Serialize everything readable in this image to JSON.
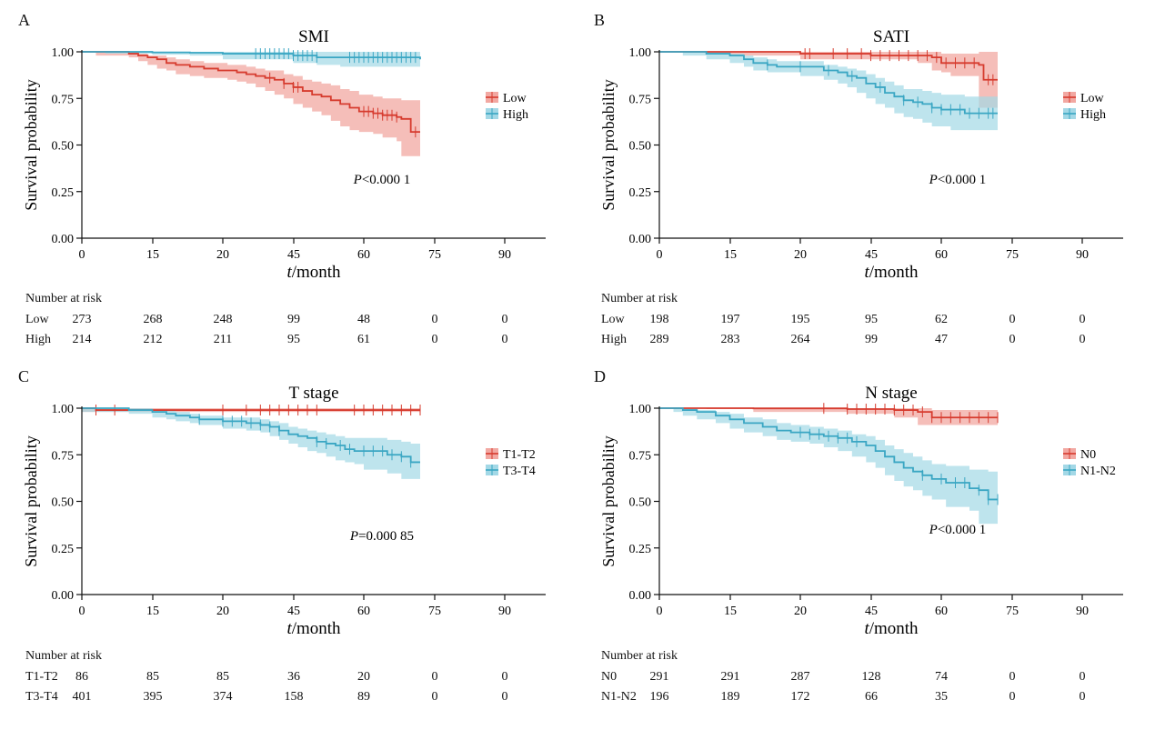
{
  "colors": {
    "low": "#d63b2e",
    "low_band": "#f2a8a2",
    "high": "#3aa6c3",
    "high_band": "#a3d8e6",
    "axis": "#111111"
  },
  "chart_data": [
    {
      "type": "line",
      "panel_label": "A",
      "title": "SMI",
      "xlabel": "t/month",
      "ylabel": "Survival probability",
      "x_ticks": [
        "0",
        "15",
        "20",
        "45",
        "60",
        "75",
        "90"
      ],
      "y_ticks": [
        "0.00",
        "0.25",
        "0.50",
        "0.75",
        "1.00"
      ],
      "ylim": [
        0,
        1
      ],
      "p_value": "P<0.000 1",
      "risk_title": "Number at risk",
      "series": [
        {
          "name": "Low",
          "x": [
            0,
            3,
            10,
            12,
            14,
            16,
            18,
            20,
            23,
            26,
            29,
            31,
            33,
            35,
            37,
            39,
            41,
            43,
            45,
            47,
            49,
            51,
            53,
            55,
            57,
            59,
            62,
            64,
            67,
            68,
            70,
            72
          ],
          "y": [
            1.0,
            1.0,
            0.99,
            0.98,
            0.97,
            0.96,
            0.94,
            0.93,
            0.92,
            0.91,
            0.9,
            0.9,
            0.89,
            0.88,
            0.87,
            0.86,
            0.85,
            0.83,
            0.81,
            0.79,
            0.77,
            0.76,
            0.74,
            0.72,
            0.7,
            0.68,
            0.67,
            0.66,
            0.65,
            0.64,
            0.57,
            0.57
          ],
          "lower": [
            1.0,
            1.0,
            0.98,
            0.97,
            0.95,
            0.93,
            0.91,
            0.9,
            0.88,
            0.87,
            0.86,
            0.86,
            0.85,
            0.84,
            0.83,
            0.81,
            0.79,
            0.77,
            0.75,
            0.72,
            0.7,
            0.68,
            0.66,
            0.63,
            0.6,
            0.58,
            0.57,
            0.56,
            0.54,
            0.52,
            0.44,
            0.44
          ],
          "upper": [
            1.0,
            1.0,
            1.0,
            0.99,
            0.98,
            0.98,
            0.97,
            0.96,
            0.95,
            0.94,
            0.94,
            0.93,
            0.93,
            0.92,
            0.91,
            0.9,
            0.9,
            0.88,
            0.87,
            0.85,
            0.84,
            0.83,
            0.82,
            0.8,
            0.79,
            0.77,
            0.76,
            0.75,
            0.75,
            0.74,
            0.74,
            0.74
          ],
          "censor_x": [
            40,
            43,
            45,
            46,
            60,
            61,
            62,
            63,
            64,
            65,
            66,
            67,
            71
          ],
          "risk": [
            "273",
            "268",
            "248",
            "99",
            "48",
            "0",
            "0"
          ]
        },
        {
          "name": "High",
          "x": [
            0,
            5,
            15,
            23,
            30,
            45,
            50,
            55,
            72
          ],
          "y": [
            1.0,
            1.0,
            0.997,
            0.995,
            0.99,
            0.98,
            0.97,
            0.97,
            0.96
          ],
          "lower": [
            1.0,
            1.0,
            0.99,
            0.985,
            0.98,
            0.96,
            0.94,
            0.93,
            0.92
          ],
          "upper": [
            1.0,
            1.0,
            1.0,
            1.0,
            1.0,
            1.0,
            1.0,
            1.0,
            1.0
          ],
          "censor_x": [
            37,
            38,
            39,
            40,
            41,
            42,
            43,
            44,
            45,
            46,
            47,
            48,
            49,
            50,
            57,
            58,
            59,
            60,
            61,
            62,
            63,
            64,
            65,
            66,
            67,
            68,
            69,
            70,
            71
          ],
          "risk": [
            "214",
            "212",
            "211",
            "95",
            "61",
            "0",
            "0"
          ]
        }
      ]
    },
    {
      "type": "line",
      "panel_label": "B",
      "title": "SATI",
      "xlabel": "t/month",
      "ylabel": "Survival probability",
      "x_ticks": [
        "0",
        "15",
        "20",
        "45",
        "60",
        "75",
        "90"
      ],
      "y_ticks": [
        "0.00",
        "0.25",
        "0.50",
        "0.75",
        "1.00"
      ],
      "ylim": [
        0,
        1
      ],
      "p_value": "P<0.000 1",
      "risk_title": "Number at risk",
      "series": [
        {
          "name": "Low",
          "x": [
            0,
            15,
            30,
            45,
            55,
            58,
            60,
            62,
            68,
            69,
            72
          ],
          "y": [
            1.0,
            1.0,
            0.99,
            0.98,
            0.98,
            0.97,
            0.94,
            0.94,
            0.93,
            0.85,
            0.85
          ],
          "lower": [
            1.0,
            1.0,
            0.98,
            0.96,
            0.96,
            0.94,
            0.9,
            0.89,
            0.87,
            0.7,
            0.7
          ],
          "upper": [
            1.0,
            1.0,
            1.0,
            1.0,
            1.0,
            1.0,
            0.99,
            0.99,
            1.0,
            1.0,
            1.0
          ],
          "censor_x": [
            31,
            32,
            37,
            40,
            43,
            45,
            47,
            49,
            51,
            53,
            55,
            57,
            59,
            61,
            63,
            65,
            67,
            70,
            71
          ],
          "risk": [
            "198",
            "197",
            "195",
            "95",
            "62",
            "0",
            "0"
          ]
        },
        {
          "name": "High",
          "x": [
            0,
            5,
            10,
            15,
            18,
            20,
            23,
            25,
            30,
            35,
            38,
            40,
            42,
            44,
            46,
            48,
            50,
            52,
            54,
            56,
            58,
            60,
            62,
            65,
            72
          ],
          "y": [
            1.0,
            1.0,
            0.99,
            0.98,
            0.96,
            0.94,
            0.93,
            0.92,
            0.92,
            0.9,
            0.89,
            0.87,
            0.86,
            0.83,
            0.81,
            0.78,
            0.76,
            0.74,
            0.73,
            0.72,
            0.7,
            0.69,
            0.69,
            0.67,
            0.67
          ],
          "lower": [
            1.0,
            1.0,
            0.98,
            0.96,
            0.94,
            0.92,
            0.9,
            0.89,
            0.89,
            0.87,
            0.85,
            0.83,
            0.81,
            0.78,
            0.75,
            0.72,
            0.7,
            0.67,
            0.65,
            0.64,
            0.62,
            0.6,
            0.6,
            0.58,
            0.58
          ],
          "upper": [
            1.0,
            1.0,
            1.0,
            0.99,
            0.98,
            0.97,
            0.96,
            0.95,
            0.95,
            0.93,
            0.92,
            0.91,
            0.9,
            0.88,
            0.86,
            0.84,
            0.82,
            0.8,
            0.8,
            0.79,
            0.78,
            0.77,
            0.77,
            0.76,
            0.76
          ],
          "censor_x": [
            23,
            30,
            36,
            41,
            47,
            52,
            55,
            58,
            60,
            62,
            64,
            66,
            68,
            70,
            71
          ],
          "risk": [
            "289",
            "283",
            "264",
            "99",
            "47",
            "0",
            "0"
          ]
        }
      ]
    },
    {
      "type": "line",
      "panel_label": "C",
      "title": "T stage",
      "xlabel": "t/month",
      "ylabel": "Survival probability",
      "x_ticks": [
        "0",
        "15",
        "20",
        "45",
        "60",
        "75",
        "90"
      ],
      "y_ticks": [
        "0.00",
        "0.25",
        "0.50",
        "0.75",
        "1.00"
      ],
      "ylim": [
        0,
        1
      ],
      "p_value": "P=0.000 85",
      "risk_title": "Number at risk",
      "series": [
        {
          "name": "T1-T2",
          "x": [
            0,
            3,
            72
          ],
          "y": [
            1.0,
            0.99,
            0.99
          ],
          "lower": [
            0.99,
            0.98,
            0.98
          ],
          "upper": [
            1.0,
            1.0,
            1.0
          ],
          "censor_x": [
            3,
            7,
            30,
            35,
            38,
            40,
            42,
            44,
            46,
            48,
            50,
            58,
            60,
            62,
            64,
            66,
            68,
            70,
            72
          ],
          "risk": [
            "86",
            "85",
            "85",
            "36",
            "20",
            "0",
            "0"
          ]
        },
        {
          "name": "T3-T4",
          "x": [
            0,
            10,
            15,
            18,
            20,
            23,
            25,
            30,
            35,
            38,
            40,
            42,
            44,
            46,
            48,
            50,
            52,
            54,
            56,
            58,
            60,
            65,
            68,
            70,
            72
          ],
          "y": [
            1.0,
            0.99,
            0.98,
            0.97,
            0.96,
            0.95,
            0.94,
            0.93,
            0.92,
            0.91,
            0.9,
            0.88,
            0.86,
            0.85,
            0.84,
            0.82,
            0.81,
            0.8,
            0.78,
            0.77,
            0.77,
            0.75,
            0.74,
            0.71,
            0.71
          ],
          "lower": [
            1.0,
            0.98,
            0.97,
            0.95,
            0.94,
            0.93,
            0.92,
            0.91,
            0.89,
            0.88,
            0.87,
            0.85,
            0.83,
            0.81,
            0.79,
            0.77,
            0.76,
            0.74,
            0.72,
            0.71,
            0.7,
            0.67,
            0.65,
            0.62,
            0.62
          ],
          "upper": [
            1.0,
            1.0,
            0.99,
            0.99,
            0.98,
            0.97,
            0.96,
            0.95,
            0.95,
            0.94,
            0.93,
            0.92,
            0.9,
            0.89,
            0.88,
            0.87,
            0.86,
            0.85,
            0.84,
            0.84,
            0.84,
            0.83,
            0.82,
            0.81,
            0.81
          ],
          "censor_x": [
            25,
            30,
            32,
            34,
            36,
            38,
            40,
            42,
            50,
            52,
            55,
            57,
            60,
            62,
            64,
            66,
            68,
            70
          ],
          "risk": [
            "401",
            "395",
            "374",
            "158",
            "89",
            "0",
            "0"
          ]
        }
      ]
    },
    {
      "type": "line",
      "panel_label": "D",
      "title": "N stage",
      "xlabel": "t/month",
      "ylabel": "Survival probability",
      "x_ticks": [
        "0",
        "15",
        "20",
        "45",
        "60",
        "75",
        "90"
      ],
      "y_ticks": [
        "0.00",
        "0.25",
        "0.50",
        "0.75",
        "1.00"
      ],
      "ylim": [
        0,
        1
      ],
      "p_value": "P<0.000 1",
      "risk_title": "Number at risk",
      "series": [
        {
          "name": "N0",
          "x": [
            0,
            10,
            20,
            40,
            50,
            55,
            58,
            72
          ],
          "y": [
            1.0,
            1.0,
            0.999,
            0.995,
            0.99,
            0.98,
            0.95,
            0.95
          ],
          "lower": [
            1.0,
            1.0,
            0.995,
            0.98,
            0.97,
            0.95,
            0.91,
            0.91
          ],
          "upper": [
            1.0,
            1.0,
            1.0,
            1.0,
            1.0,
            1.0,
            0.99,
            0.99
          ],
          "censor_x": [
            35,
            40,
            42,
            44,
            46,
            48,
            50,
            52,
            54,
            56,
            58,
            60,
            62,
            64,
            66,
            68,
            70,
            72
          ],
          "risk": [
            "291",
            "291",
            "287",
            "128",
            "74",
            "0",
            "0"
          ]
        },
        {
          "name": "N1-N2",
          "x": [
            0,
            3,
            5,
            8,
            12,
            15,
            18,
            22,
            25,
            28,
            32,
            35,
            38,
            41,
            44,
            46,
            48,
            50,
            52,
            54,
            56,
            58,
            61,
            66,
            68,
            70,
            72
          ],
          "y": [
            1.0,
            1.0,
            0.99,
            0.98,
            0.96,
            0.94,
            0.92,
            0.9,
            0.88,
            0.87,
            0.86,
            0.85,
            0.84,
            0.82,
            0.8,
            0.77,
            0.74,
            0.71,
            0.68,
            0.66,
            0.64,
            0.62,
            0.6,
            0.57,
            0.56,
            0.51,
            0.51
          ],
          "lower": [
            1.0,
            1.0,
            0.98,
            0.96,
            0.94,
            0.92,
            0.89,
            0.87,
            0.85,
            0.83,
            0.82,
            0.81,
            0.79,
            0.77,
            0.74,
            0.71,
            0.68,
            0.64,
            0.61,
            0.58,
            0.56,
            0.53,
            0.51,
            0.47,
            0.45,
            0.38,
            0.38
          ],
          "upper": [
            1.0,
            1.0,
            1.0,
            0.99,
            0.98,
            0.97,
            0.95,
            0.94,
            0.92,
            0.91,
            0.9,
            0.89,
            0.88,
            0.86,
            0.85,
            0.83,
            0.8,
            0.78,
            0.76,
            0.74,
            0.72,
            0.7,
            0.69,
            0.67,
            0.67,
            0.66,
            0.66
          ],
          "censor_x": [
            30,
            32,
            34,
            36,
            38,
            40,
            42,
            56,
            60,
            63,
            65,
            68,
            70,
            72
          ],
          "risk": [
            "196",
            "189",
            "172",
            "66",
            "35",
            "0",
            "0"
          ]
        }
      ]
    }
  ]
}
